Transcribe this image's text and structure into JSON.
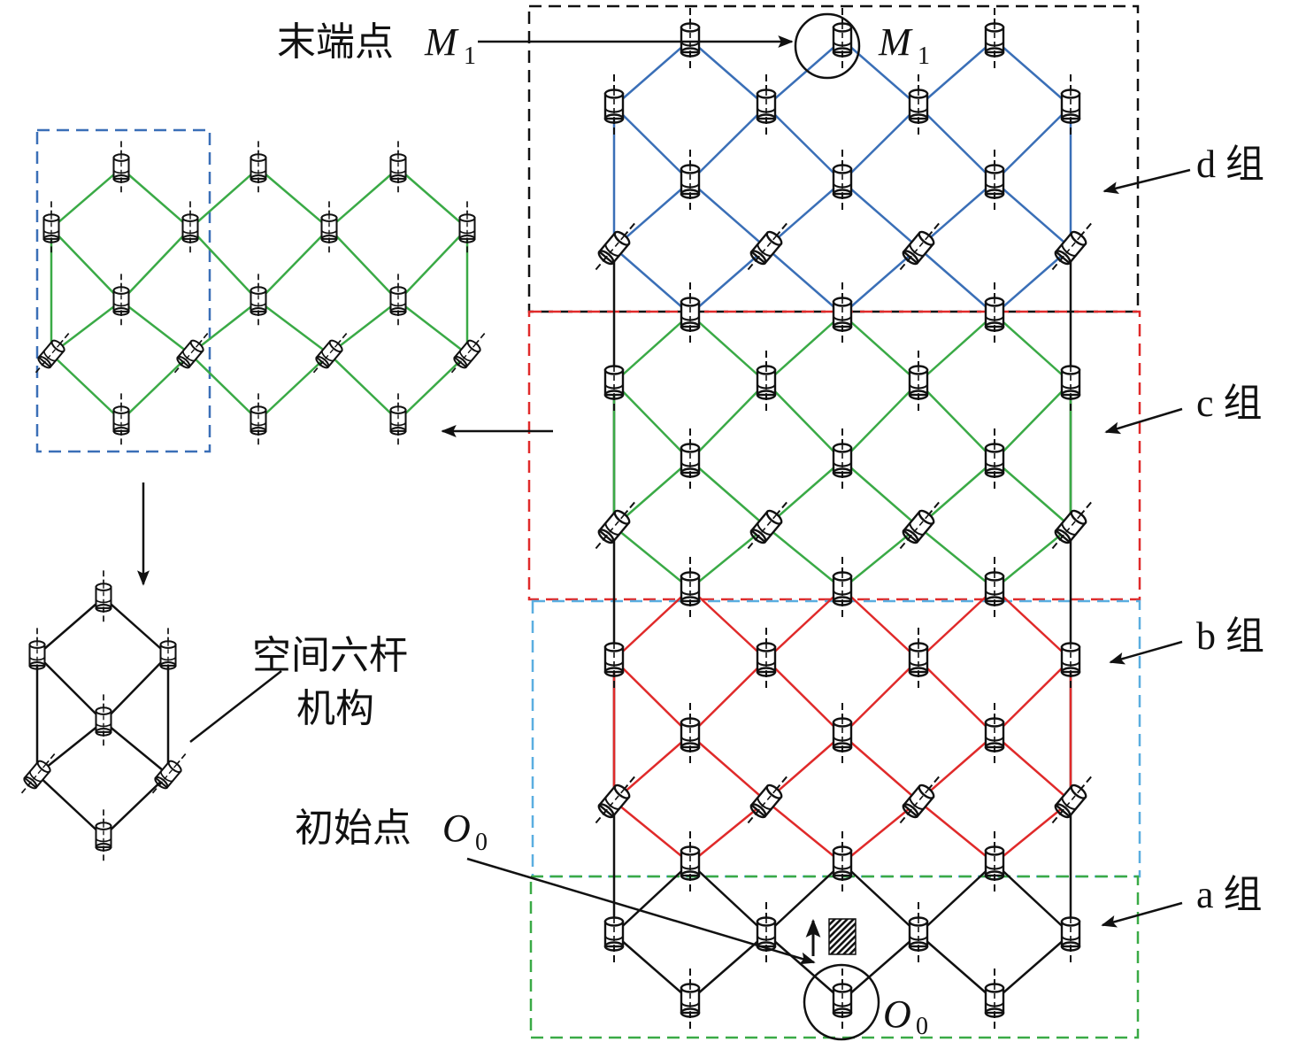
{
  "labels": {
    "end_point": "末端点",
    "end_point_symbol": "M",
    "end_point_sub": "1",
    "start_point": "初始点",
    "start_point_symbol": "O",
    "start_point_sub": "0",
    "mechanism_line1": "空间六杆",
    "mechanism_line2": "机构",
    "group_d": "d 组",
    "group_c": "c 组",
    "group_b": "b 组",
    "group_a": "a 组"
  },
  "colors": {
    "group_d": "#3a6fb7",
    "group_c": "#3aaa46",
    "group_b": "#e02a2a",
    "group_a": "#111111",
    "box_d": "#111111",
    "box_c": "#e02a2a",
    "box_b": "#5aaee0",
    "box_a": "#3aaa46",
    "submodule_box": "#3a6fb7"
  }
}
